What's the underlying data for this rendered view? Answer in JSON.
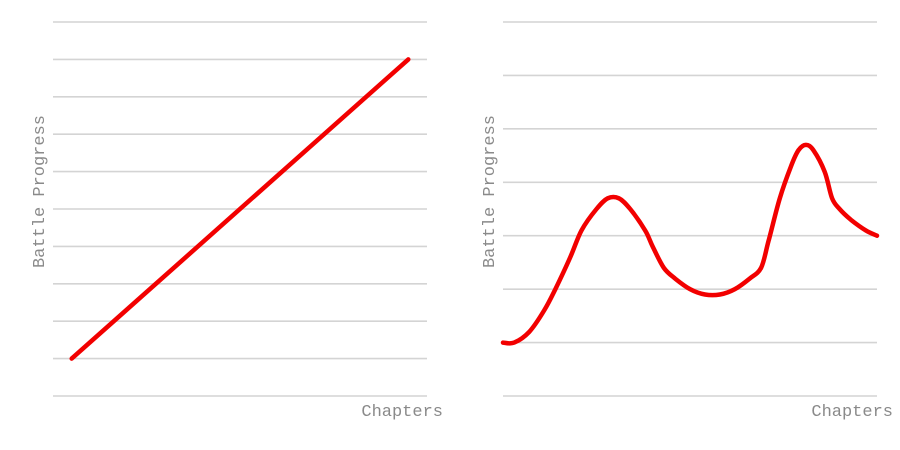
{
  "colors": {
    "series": "#f20000",
    "grid": "#d4d4d4",
    "text": "#8a8a8a"
  },
  "chart_data": [
    {
      "type": "line",
      "title": "",
      "xlabel": "Chapters",
      "ylabel": "Battle Progress",
      "grid": true,
      "ylim": [
        0,
        10
      ],
      "xlim": [
        0,
        10
      ],
      "series": [
        {
          "values": [
            [
              0.5,
              1.0
            ],
            [
              9.5,
              9.0
            ]
          ]
        }
      ]
    },
    {
      "type": "line",
      "title": "",
      "xlabel": "Chapters",
      "ylabel": "Battle Progress",
      "grid": true,
      "ylim": [
        0,
        7
      ],
      "xlim": [
        0,
        10
      ],
      "series": [
        {
          "values": [
            [
              0.0,
              1.0
            ],
            [
              0.3,
              1.0
            ],
            [
              0.7,
              1.2
            ],
            [
              1.1,
              1.6
            ],
            [
              1.4,
              2.0
            ],
            [
              1.8,
              2.6
            ],
            [
              2.1,
              3.1
            ],
            [
              2.5,
              3.5
            ],
            [
              2.8,
              3.7
            ],
            [
              3.1,
              3.7
            ],
            [
              3.4,
              3.5
            ],
            [
              3.8,
              3.1
            ],
            [
              4.0,
              2.8
            ],
            [
              4.3,
              2.4
            ],
            [
              4.6,
              2.2
            ],
            [
              5.0,
              2.0
            ],
            [
              5.4,
              1.9
            ],
            [
              5.8,
              1.9
            ],
            [
              6.2,
              2.0
            ],
            [
              6.6,
              2.2
            ],
            [
              6.9,
              2.4
            ],
            [
              7.1,
              2.9
            ],
            [
              7.4,
              3.7
            ],
            [
              7.7,
              4.3
            ],
            [
              7.9,
              4.6
            ],
            [
              8.1,
              4.7
            ],
            [
              8.3,
              4.6
            ],
            [
              8.6,
              4.2
            ],
            [
              8.8,
              3.7
            ],
            [
              9.0,
              3.5
            ],
            [
              9.3,
              3.3
            ],
            [
              9.7,
              3.1
            ],
            [
              10.0,
              3.0
            ]
          ]
        }
      ]
    }
  ]
}
